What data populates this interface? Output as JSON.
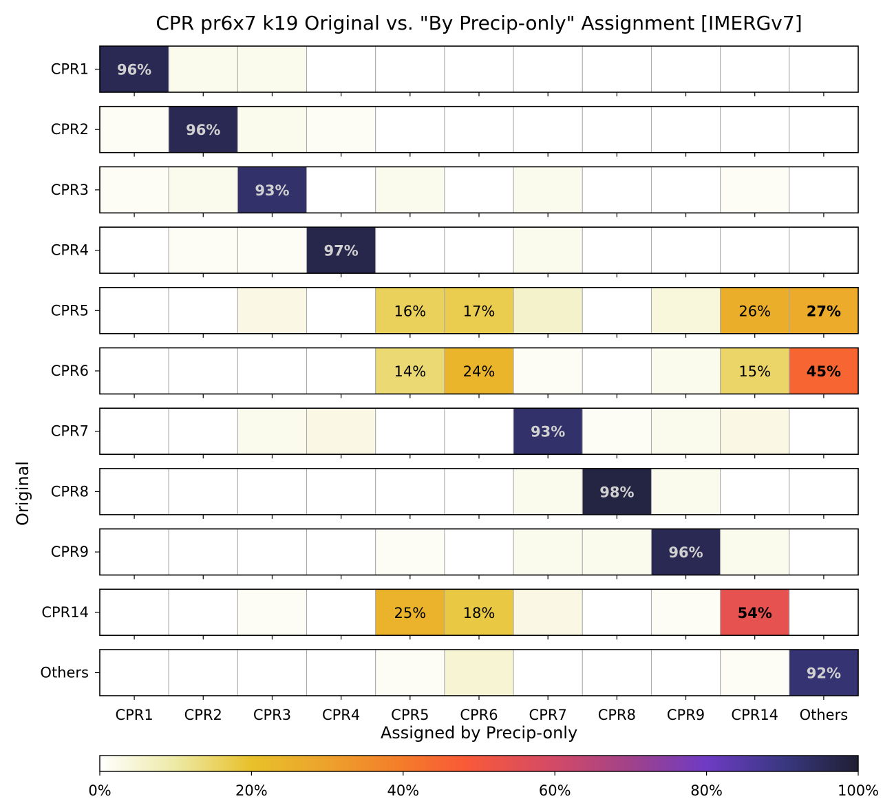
{
  "chart_data": {
    "type": "heatmap",
    "title": "CPR pr6x7 k19 Original vs. \"By Precip-only\" Assignment [IMERGv7]",
    "xlabel": "Assigned by Precip-only",
    "ylabel": "Original",
    "rows": [
      "CPR1",
      "CPR2",
      "CPR3",
      "CPR4",
      "CPR5",
      "CPR6",
      "CPR7",
      "CPR8",
      "CPR9",
      "CPR14",
      "Others"
    ],
    "columns": [
      "CPR1",
      "CPR2",
      "CPR3",
      "CPR4",
      "CPR5",
      "CPR6",
      "CPR7",
      "CPR8",
      "CPR9",
      "CPR14",
      "Others"
    ],
    "values": [
      [
        96,
        2,
        2,
        0,
        0,
        0,
        0,
        0,
        0,
        0,
        0
      ],
      [
        1,
        96,
        2,
        1,
        0,
        0,
        0,
        0,
        0,
        0,
        0
      ],
      [
        1,
        2,
        93,
        0,
        2,
        0,
        2,
        0,
        0,
        1,
        0
      ],
      [
        0,
        1,
        1,
        97,
        0,
        0,
        2,
        0,
        0,
        0,
        0
      ],
      [
        0,
        0,
        3,
        0,
        16,
        17,
        6,
        0,
        4,
        26,
        27
      ],
      [
        0,
        0,
        0,
        0,
        14,
        24,
        1,
        0,
        2,
        15,
        45
      ],
      [
        0,
        0,
        2,
        3,
        0,
        0,
        93,
        1,
        2,
        3,
        0
      ],
      [
        0,
        0,
        0,
        0,
        0,
        0,
        2,
        98,
        2,
        0,
        0
      ],
      [
        0,
        0,
        0,
        0,
        1,
        0,
        2,
        2,
        96,
        2,
        0
      ],
      [
        0,
        0,
        1,
        0,
        25,
        18,
        3,
        0,
        1,
        54,
        0
      ],
      [
        0,
        0,
        0,
        0,
        1,
        5,
        0,
        0,
        0,
        1,
        92
      ]
    ],
    "cell_labels": [
      [
        "96%",
        "",
        "",
        "",
        "",
        "",
        "",
        "",
        "",
        "",
        ""
      ],
      [
        "",
        "96%",
        "",
        "",
        "",
        "",
        "",
        "",
        "",
        "",
        ""
      ],
      [
        "",
        "",
        "93%",
        "",
        "",
        "",
        "",
        "",
        "",
        "",
        ""
      ],
      [
        "",
        "",
        "",
        "97%",
        "",
        "",
        "",
        "",
        "",
        "",
        ""
      ],
      [
        "",
        "",
        "",
        "",
        "16%",
        "17%",
        "",
        "",
        "",
        "26%",
        "27%"
      ],
      [
        "",
        "",
        "",
        "",
        "14%",
        "24%",
        "",
        "",
        "",
        "15%",
        "45%"
      ],
      [
        "",
        "",
        "",
        "",
        "",
        "",
        "93%",
        "",
        "",
        "",
        ""
      ],
      [
        "",
        "",
        "",
        "",
        "",
        "",
        "",
        "98%",
        "",
        "",
        ""
      ],
      [
        "",
        "",
        "",
        "",
        "",
        "",
        "",
        "",
        "96%",
        "",
        ""
      ],
      [
        "",
        "",
        "",
        "",
        "25%",
        "18%",
        "",
        "",
        "",
        "54%",
        ""
      ],
      [
        "",
        "",
        "",
        "",
        "",
        "",
        "",
        "",
        "",
        "",
        "92%"
      ]
    ],
    "bold_diagonal": true,
    "value_range": [
      0,
      100
    ],
    "colorbar": {
      "ticks": [
        0,
        20,
        40,
        60,
        80,
        100
      ],
      "tick_labels": [
        "0%",
        "20%",
        "40%",
        "60%",
        "80%",
        "100%"
      ],
      "placement": "bottom"
    },
    "colormap": [
      [
        0,
        "#ffffff"
      ],
      [
        10,
        "#ede9a6"
      ],
      [
        20,
        "#e8c12a"
      ],
      [
        30,
        "#eda22c"
      ],
      [
        40,
        "#f47b2a"
      ],
      [
        48,
        "#f95a37"
      ],
      [
        60,
        "#d34a67"
      ],
      [
        70,
        "#a0428a"
      ],
      [
        80,
        "#6e3bc4"
      ],
      [
        90,
        "#3a3882"
      ],
      [
        100,
        "#1f1f33"
      ]
    ]
  }
}
